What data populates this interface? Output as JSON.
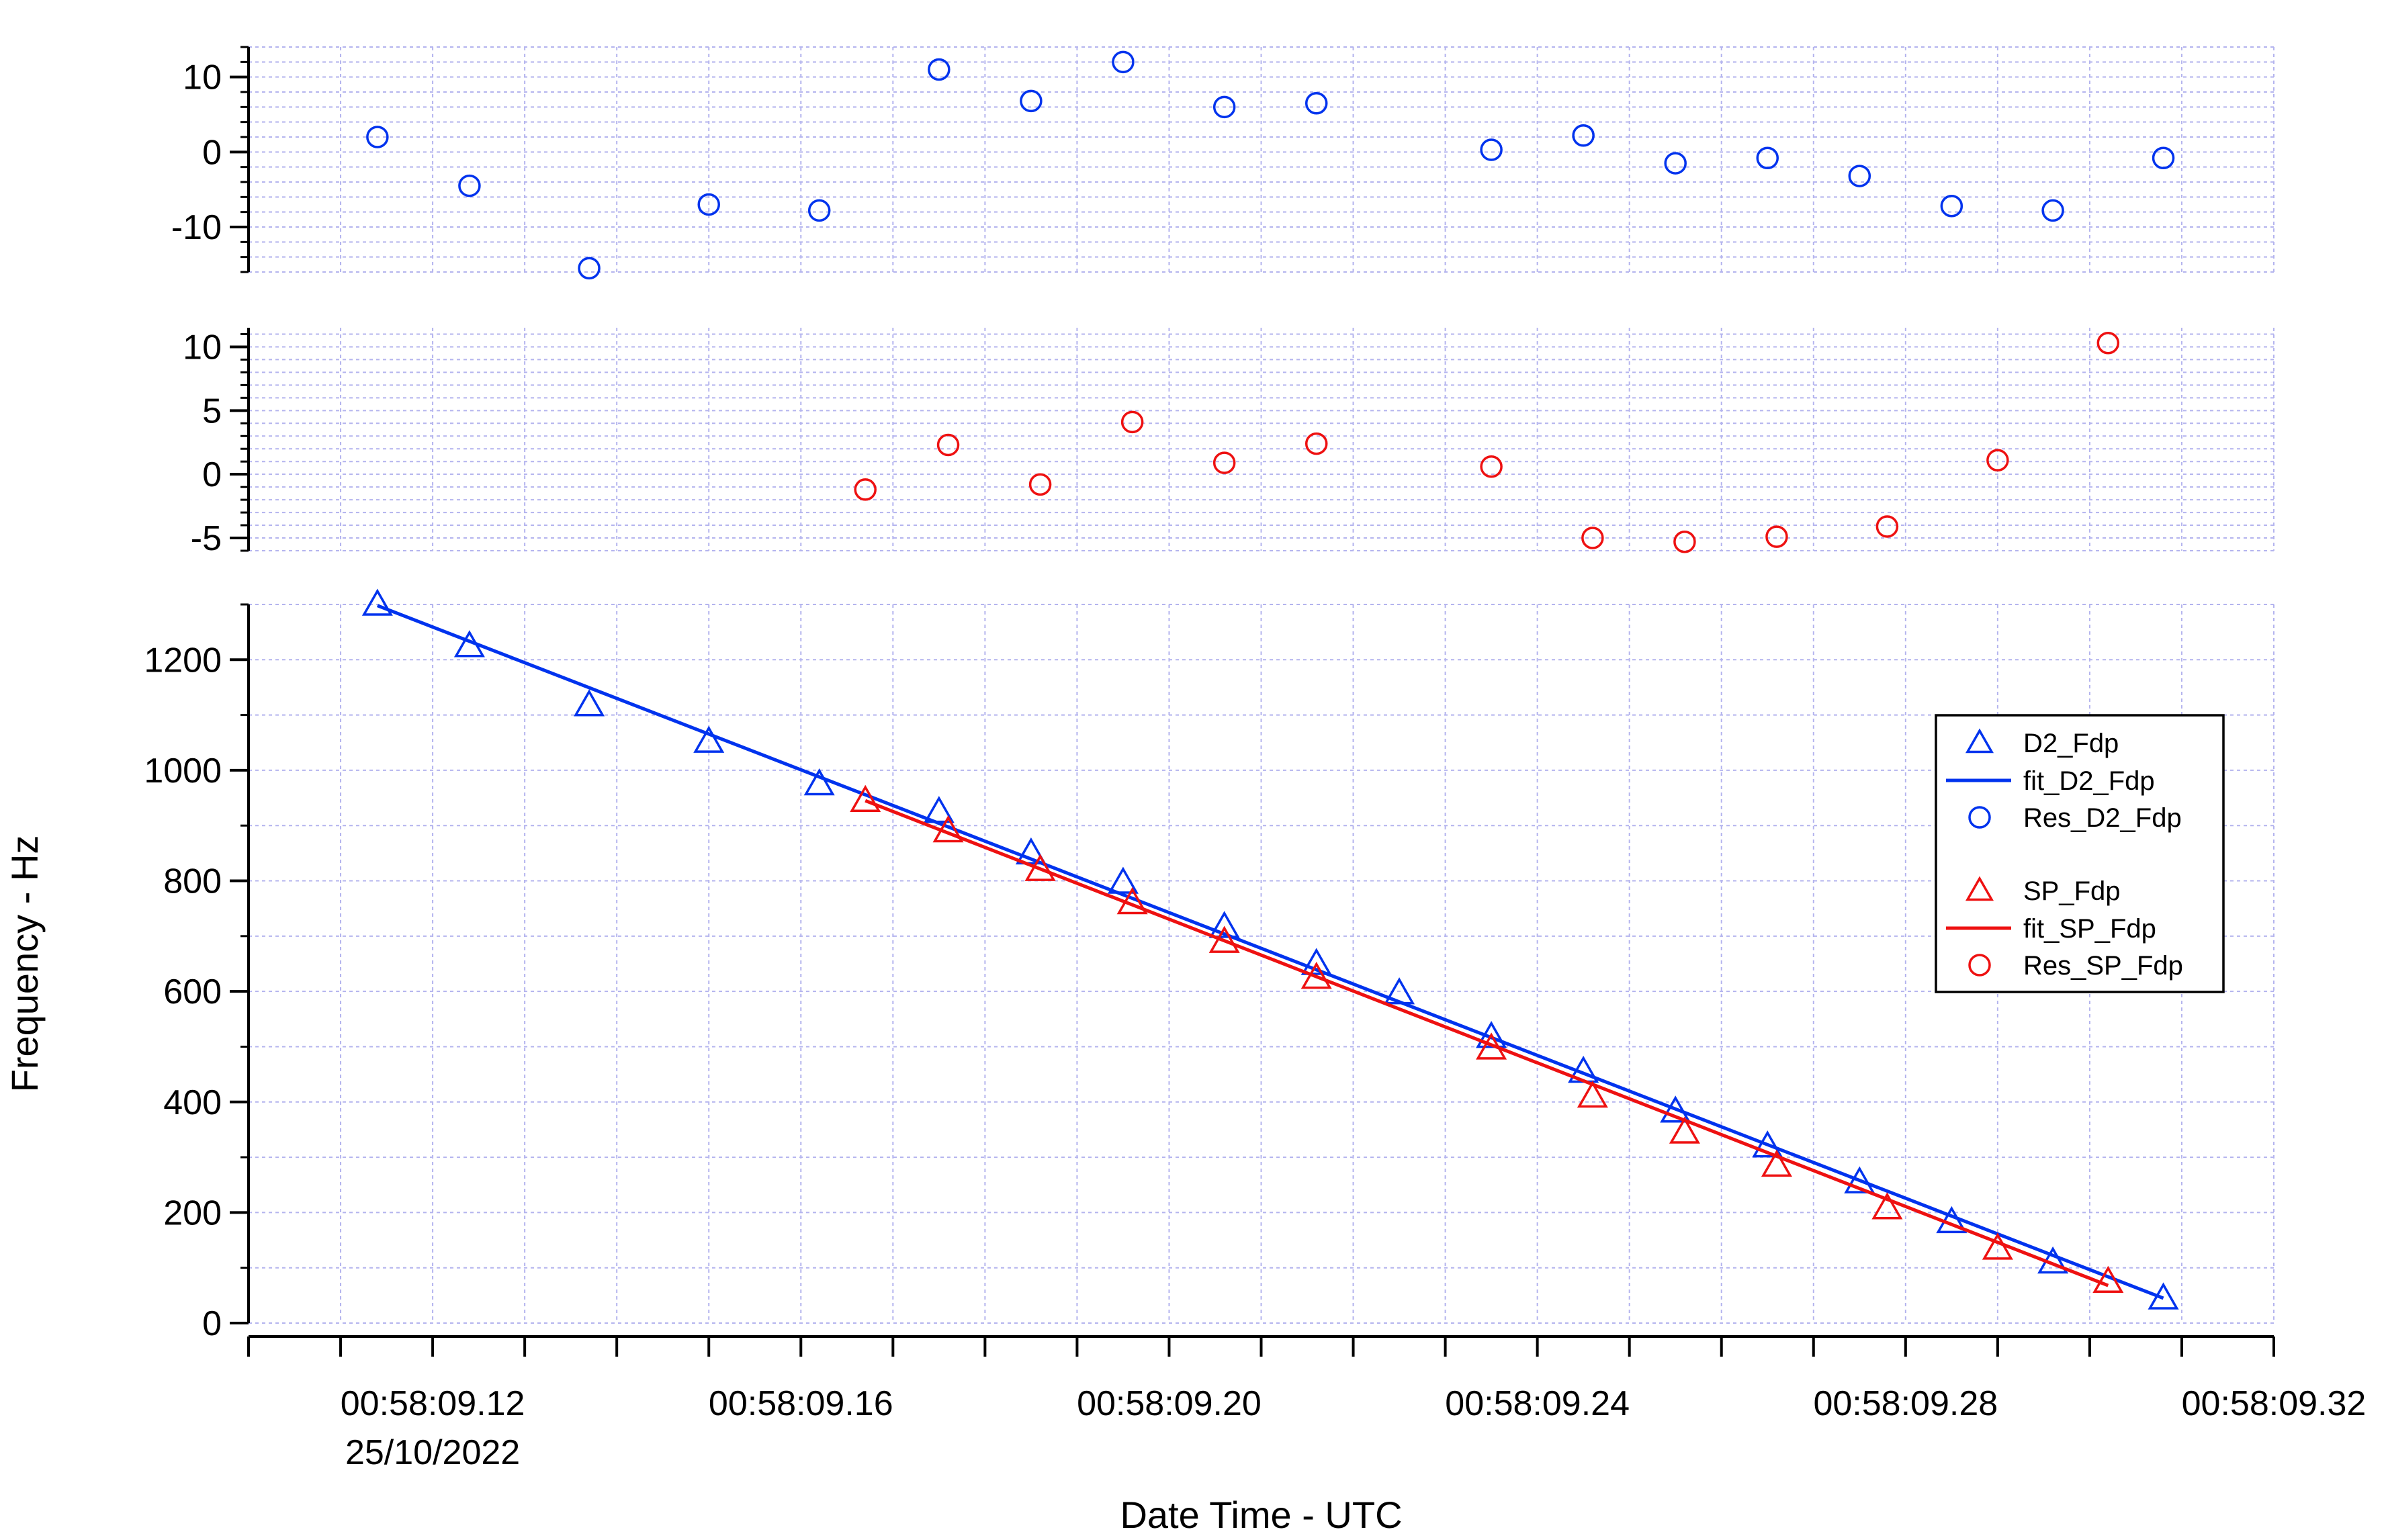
{
  "chart_data": {
    "type": "scatter",
    "xlabel": "Date Time - UTC",
    "ylabel": "Frequency - Hz",
    "x_tick_labels": [
      "00:58:09.12",
      "00:58:09.16",
      "00:58:09.20",
      "00:58:09.24",
      "00:58:09.28",
      "00:58:09.32"
    ],
    "x_date_label": "25/10/2022",
    "xlim": [
      "00:58:09.100",
      "00:58:09.320"
    ],
    "grid": true,
    "legend_position": "right",
    "panels": [
      {
        "id": "res-d2",
        "ylim": [
          -16,
          14
        ],
        "y_ticks": [
          -10,
          0,
          10
        ],
        "y_tick_labels": [
          "-10",
          "0",
          "10"
        ],
        "series": [
          {
            "name": "Res_D2_Fdp",
            "marker": "circle",
            "color": "#0033ee",
            "x": [
              "00:58:09.114",
              "00:58:09.124",
              "00:58:09.137",
              "00:58:09.150",
              "00:58:09.162",
              "00:58:09.175",
              "00:58:09.185",
              "00:58:09.195",
              "00:58:09.206",
              "00:58:09.216",
              "00:58:09.235",
              "00:58:09.245",
              "00:58:09.255",
              "00:58:09.265",
              "00:58:09.275",
              "00:58:09.285",
              "00:58:09.296",
              "00:58:09.308"
            ],
            "y": [
              2,
              -4.5,
              -15.5,
              -7,
              -7.8,
              11,
              6.8,
              12,
              6,
              6.5,
              0.3,
              2.2,
              -1.5,
              -0.8,
              -3.2,
              -7.2,
              -7.8,
              -0.8
            ]
          }
        ]
      },
      {
        "id": "res-sp",
        "ylim": [
          -6,
          11.5
        ],
        "y_ticks": [
          -5,
          0,
          5,
          10
        ],
        "y_tick_labels": [
          "-5",
          "0",
          "5",
          "10"
        ],
        "series": [
          {
            "name": "Res_SP_Fdp",
            "marker": "circle",
            "color": "#ee1111",
            "x": [
              "00:58:09.167",
              "00:58:09.176",
              "00:58:09.186",
              "00:58:09.196",
              "00:58:09.206",
              "00:58:09.216",
              "00:58:09.235",
              "00:58:09.246",
              "00:58:09.256",
              "00:58:09.266",
              "00:58:09.278",
              "00:58:09.290",
              "00:58:09.302"
            ],
            "y": [
              -1.2,
              2.3,
              -0.8,
              4.1,
              0.9,
              2.4,
              0.6,
              -5.0,
              -5.3,
              -4.9,
              -4.1,
              1.1,
              10.3
            ]
          }
        ]
      },
      {
        "id": "frequency",
        "ylim": [
          0,
          1300
        ],
        "y_ticks": [
          0,
          200,
          400,
          600,
          800,
          1000,
          1200
        ],
        "y_tick_labels": [
          "0",
          "200",
          "400",
          "600",
          "800",
          "1000",
          "1200"
        ],
        "series": [
          {
            "name": "D2_Fdp",
            "marker": "triangle",
            "color": "#0033ee",
            "x": [
              "00:58:09.114",
              "00:58:09.124",
              "00:58:09.137",
              "00:58:09.150",
              "00:58:09.162",
              "00:58:09.175",
              "00:58:09.185",
              "00:58:09.195",
              "00:58:09.206",
              "00:58:09.216",
              "00:58:09.225",
              "00:58:09.235",
              "00:58:09.245",
              "00:58:09.255",
              "00:58:09.265",
              "00:58:09.275",
              "00:58:09.285",
              "00:58:09.296",
              "00:58:09.308"
            ],
            "y": [
              1300,
              1225,
              1118,
              1052,
              975,
              925,
              850,
              797,
              717,
              650,
              597,
              518,
              455,
              383,
              320,
              255,
              183,
              110,
              45
            ]
          },
          {
            "name": "fit_D2_Fdp",
            "marker": "line",
            "color": "#0033ee",
            "x": [
              "00:58:09.114",
              "00:58:09.308"
            ],
            "y": [
              1298,
              45
            ]
          },
          {
            "name": "SP_Fdp",
            "marker": "triangle",
            "color": "#ee1111",
            "x": [
              "00:58:09.167",
              "00:58:09.176",
              "00:58:09.186",
              "00:58:09.196",
              "00:58:09.206",
              "00:58:09.216",
              "00:58:09.235",
              "00:58:09.246",
              "00:58:09.256",
              "00:58:09.266",
              "00:58:09.278",
              "00:58:09.290",
              "00:58:09.302"
            ],
            "y": [
              945,
              890,
              820,
              760,
              690,
              625,
              497,
              410,
              345,
              285,
              208,
              135,
              75
            ]
          },
          {
            "name": "fit_SP_Fdp",
            "marker": "line",
            "color": "#ee1111",
            "x": [
              "00:58:09.167",
              "00:58:09.302"
            ],
            "y": [
              945,
              68
            ]
          }
        ]
      }
    ],
    "legend": [
      {
        "name": "D2_Fdp",
        "marker": "triangle",
        "color": "#0033ee"
      },
      {
        "name": "fit_D2_Fdp",
        "marker": "line",
        "color": "#0033ee"
      },
      {
        "name": "Res_D2_Fdp",
        "marker": "circle",
        "color": "#0033ee"
      },
      {
        "name": "SP_Fdp",
        "marker": "triangle",
        "color": "#ee1111"
      },
      {
        "name": "fit_SP_Fdp",
        "marker": "line",
        "color": "#ee1111"
      },
      {
        "name": "Res_SP_Fdp",
        "marker": "circle",
        "color": "#ee1111"
      }
    ],
    "colors": {
      "grid": "#b4b4ee",
      "axis": "#000000"
    }
  }
}
